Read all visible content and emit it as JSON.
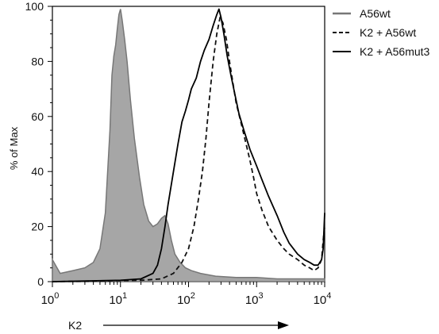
{
  "chart_data": {
    "type": "area",
    "title": "",
    "ylabel": "% of Max",
    "xlabel": "K2",
    "x_scale": "log",
    "xlim": [
      1,
      10000
    ],
    "ylim": [
      0,
      100
    ],
    "grid": false,
    "legend_position": "top-right",
    "x_ticks": [
      {
        "base": "10",
        "exp": "0",
        "value": 1
      },
      {
        "base": "10",
        "exp": "1",
        "value": 10
      },
      {
        "base": "10",
        "exp": "2",
        "value": 100
      },
      {
        "base": "10",
        "exp": "3",
        "value": 1000
      },
      {
        "base": "10",
        "exp": "4",
        "value": 10000
      }
    ],
    "y_ticks": [
      "0",
      "20",
      "40",
      "60",
      "80",
      "100"
    ],
    "series": [
      {
        "name": "A56wt",
        "style": "filled",
        "fill": "#a6a6a6",
        "stroke": "#777777",
        "points": [
          [
            1.0,
            8
          ],
          [
            1.3,
            3
          ],
          [
            2.0,
            4
          ],
          [
            3.0,
            5
          ],
          [
            4.0,
            7
          ],
          [
            5.0,
            12
          ],
          [
            6.0,
            25
          ],
          [
            7.0,
            55
          ],
          [
            7.5,
            75
          ],
          [
            8.0,
            82
          ],
          [
            8.5,
            86
          ],
          [
            9.0,
            92
          ],
          [
            9.5,
            97
          ],
          [
            10.0,
            99
          ],
          [
            10.6,
            95
          ],
          [
            11.5,
            88
          ],
          [
            12.5,
            80
          ],
          [
            14.0,
            66
          ],
          [
            16.0,
            52
          ],
          [
            19.0,
            38
          ],
          [
            22.0,
            28
          ],
          [
            26.0,
            22
          ],
          [
            30.0,
            20
          ],
          [
            35.0,
            21
          ],
          [
            40.0,
            23
          ],
          [
            45.0,
            24
          ],
          [
            50.0,
            21
          ],
          [
            56.0,
            15
          ],
          [
            63.0,
            10
          ],
          [
            75.0,
            7
          ],
          [
            90.0,
            5
          ],
          [
            110.0,
            4
          ],
          [
            150.0,
            3
          ],
          [
            250.0,
            2
          ],
          [
            500.0,
            1.5
          ],
          [
            1000.0,
            1.5
          ],
          [
            2000.0,
            1
          ],
          [
            5000.0,
            1
          ],
          [
            10000.0,
            1
          ]
        ]
      },
      {
        "name": "K2 + A56wt",
        "style": "dashed",
        "stroke": "#111111",
        "points": [
          [
            1.0,
            0
          ],
          [
            20.0,
            0.5
          ],
          [
            40.0,
            1
          ],
          [
            60.0,
            3
          ],
          [
            80.0,
            7
          ],
          [
            100.0,
            12
          ],
          [
            120.0,
            20
          ],
          [
            140.0,
            30
          ],
          [
            160.0,
            40
          ],
          [
            180.0,
            52
          ],
          [
            200.0,
            65
          ],
          [
            230.0,
            80
          ],
          [
            260.0,
            90
          ],
          [
            290.0,
            96
          ],
          [
            320.0,
            94
          ],
          [
            360.0,
            88
          ],
          [
            400.0,
            80
          ],
          [
            450.0,
            72
          ],
          [
            500.0,
            65
          ],
          [
            600.0,
            57
          ],
          [
            700.0,
            50
          ],
          [
            800.0,
            44
          ],
          [
            900.0,
            38
          ],
          [
            1000.0,
            32
          ],
          [
            1200.0,
            26
          ],
          [
            1500.0,
            20
          ],
          [
            2000.0,
            15
          ],
          [
            2500.0,
            12
          ],
          [
            3000.0,
            10
          ],
          [
            4000.0,
            8
          ],
          [
            5000.0,
            6
          ],
          [
            6000.0,
            5
          ],
          [
            7000.0,
            4
          ],
          [
            8000.0,
            5
          ],
          [
            9000.0,
            8
          ],
          [
            9500.0,
            15
          ],
          [
            10000.0,
            20
          ]
        ]
      },
      {
        "name": "K2 + A56mut3",
        "style": "solid",
        "stroke": "#000000",
        "points": [
          [
            1.0,
            0
          ],
          [
            10.0,
            0.5
          ],
          [
            20.0,
            1
          ],
          [
            30.0,
            3
          ],
          [
            35.0,
            6
          ],
          [
            40.0,
            12
          ],
          [
            45.0,
            20
          ],
          [
            50.0,
            28
          ],
          [
            60.0,
            40
          ],
          [
            70.0,
            50
          ],
          [
            80.0,
            58
          ],
          [
            90.0,
            62
          ],
          [
            100.0,
            66
          ],
          [
            110.0,
            70
          ],
          [
            130.0,
            74
          ],
          [
            150.0,
            80
          ],
          [
            170.0,
            84
          ],
          [
            200.0,
            88
          ],
          [
            230.0,
            93
          ],
          [
            260.0,
            97
          ],
          [
            280.0,
            99
          ],
          [
            300.0,
            96
          ],
          [
            330.0,
            90
          ],
          [
            370.0,
            82
          ],
          [
            420.0,
            75
          ],
          [
            480.0,
            68
          ],
          [
            550.0,
            61
          ],
          [
            650.0,
            55
          ],
          [
            800.0,
            48
          ],
          [
            1000.0,
            42
          ],
          [
            1200.0,
            37
          ],
          [
            1500.0,
            31
          ],
          [
            2000.0,
            24
          ],
          [
            2500.0,
            18
          ],
          [
            3000.0,
            14
          ],
          [
            4000.0,
            10
          ],
          [
            5000.0,
            8
          ],
          [
            6000.0,
            7
          ],
          [
            7000.0,
            6
          ],
          [
            8000.0,
            6
          ],
          [
            9000.0,
            8
          ],
          [
            9500.0,
            12
          ],
          [
            10000.0,
            25
          ]
        ]
      }
    ]
  }
}
